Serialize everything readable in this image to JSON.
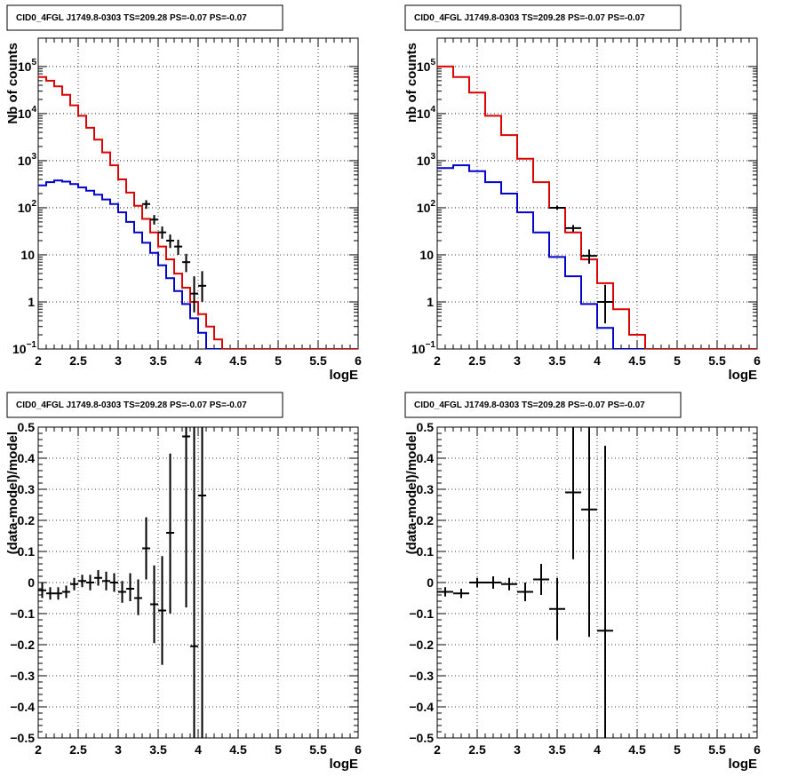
{
  "chart_data": [
    {
      "type": "line",
      "title": "CID0_4FGL J1749.8-0303 TS=209.28 PS=-0.07 PS=-0.07",
      "xlabel": "logE",
      "ylabel": "Nb of counts",
      "xlim": [
        2,
        6
      ],
      "ylim": [
        0.1,
        400000
      ],
      "yscale": "log",
      "grid": true,
      "xticks": [
        "2",
        "2.5",
        "3",
        "3.5",
        "4",
        "4.5",
        "5",
        "5.5",
        "6"
      ],
      "yticks": [
        {
          "value": 0.1,
          "mantissa": "10",
          "exp": "−1"
        },
        {
          "value": 1,
          "mantissa": "1",
          "exp": ""
        },
        {
          "value": 10,
          "mantissa": "10",
          "exp": ""
        },
        {
          "value": 100,
          "mantissa": "10",
          "exp": "2"
        },
        {
          "value": 1000,
          "mantissa": "10",
          "exp": "3"
        },
        {
          "value": 10000,
          "mantissa": "10",
          "exp": "4"
        },
        {
          "value": 100000,
          "mantissa": "10",
          "exp": "5"
        }
      ],
      "bin_edges": [
        2.0,
        2.1,
        2.2,
        2.3,
        2.4,
        2.5,
        2.6,
        2.7,
        2.8,
        2.9,
        3.0,
        3.1,
        3.2,
        3.3,
        3.4,
        3.5,
        3.6,
        3.7,
        3.8,
        3.9,
        4.0,
        4.1,
        4.2,
        4.3,
        4.4,
        4.5,
        4.6,
        4.7,
        4.8,
        4.9,
        5.0,
        5.1,
        5.2,
        5.3,
        5.4,
        5.5,
        5.6,
        5.7,
        5.8,
        5.9,
        6.0
      ],
      "series": [
        {
          "color": "#0000cc",
          "style": "step",
          "values": [
            300,
            350,
            380,
            360,
            320,
            270,
            230,
            190,
            150,
            120,
            80,
            50,
            30,
            18,
            11,
            6,
            3.2,
            1.7,
            0.9,
            0.45,
            0.22,
            0.1,
            0.1,
            0.1,
            0.1,
            0.1,
            0.1,
            0.1,
            0.1,
            0.1,
            0.1,
            0.1,
            0.1,
            0.1,
            0.1,
            0.1,
            0.1,
            0.1,
            0.1,
            0.1
          ]
        },
        {
          "color": "#dd0000",
          "style": "step",
          "values": [
            60000,
            50000,
            38000,
            25000,
            15000,
            9000,
            5000,
            2800,
            1500,
            800,
            400,
            210,
            110,
            58,
            30,
            15,
            8,
            4,
            2,
            1,
            0.55,
            0.3,
            0.16,
            0.1,
            0.1,
            0.1,
            0.1,
            0.1,
            0.1,
            0.1,
            0.1,
            0.1,
            0.1,
            0.1,
            0.1,
            0.1,
            0.1,
            0.1,
            0.1,
            0.1
          ]
        },
        {
          "color": "#000000",
          "style": "points",
          "points": [
            {
              "x": 3.35,
              "y": 120,
              "xerr": 0.05,
              "ylo": 95,
              "yhi": 145
            },
            {
              "x": 3.45,
              "y": 56,
              "xerr": 0.05,
              "ylo": 44,
              "yhi": 70
            },
            {
              "x": 3.55,
              "y": 30,
              "xerr": 0.05,
              "ylo": 22,
              "yhi": 40
            },
            {
              "x": 3.65,
              "y": 20,
              "xerr": 0.05,
              "ylo": 14,
              "yhi": 27
            },
            {
              "x": 3.75,
              "y": 15,
              "xerr": 0.05,
              "ylo": 10,
              "yhi": 21
            },
            {
              "x": 3.85,
              "y": 7,
              "xerr": 0.05,
              "ylo": 4.3,
              "yhi": 10.5
            },
            {
              "x": 3.95,
              "y": 1.5,
              "xerr": 0.05,
              "ylo": 0.6,
              "yhi": 3.5
            },
            {
              "x": 4.05,
              "y": 2.2,
              "xerr": 0.05,
              "ylo": 1.0,
              "yhi": 4.5
            }
          ]
        }
      ]
    },
    {
      "type": "line",
      "title": "CID0_4FGL J1749.8-0303 TS=209.28 PS=-0.07 PS=-0.07",
      "xlabel": "logE",
      "ylabel": "nb of counts",
      "xlim": [
        2,
        6
      ],
      "ylim": [
        0.1,
        400000
      ],
      "yscale": "log",
      "grid": true,
      "xticks": [
        "2",
        "2.5",
        "3",
        "3.5",
        "4",
        "4.5",
        "5",
        "5.5",
        "6"
      ],
      "yticks": [
        {
          "value": 0.1,
          "mantissa": "10",
          "exp": "−1"
        },
        {
          "value": 1,
          "mantissa": "1",
          "exp": ""
        },
        {
          "value": 10,
          "mantissa": "10",
          "exp": ""
        },
        {
          "value": 100,
          "mantissa": "10",
          "exp": "2"
        },
        {
          "value": 1000,
          "mantissa": "10",
          "exp": "3"
        },
        {
          "value": 10000,
          "mantissa": "10",
          "exp": "4"
        },
        {
          "value": 100000,
          "mantissa": "10",
          "exp": "5"
        }
      ],
      "bin_edges": [
        2.0,
        2.2,
        2.4,
        2.6,
        2.8,
        3.0,
        3.2,
        3.4,
        3.6,
        3.8,
        4.0,
        4.2,
        4.4,
        4.6,
        4.8,
        5.0,
        5.2,
        5.4,
        5.6,
        5.8,
        6.0
      ],
      "series": [
        {
          "color": "#0000cc",
          "style": "step",
          "values": [
            700,
            800,
            600,
            350,
            200,
            80,
            30,
            9,
            3.5,
            0.9,
            0.28,
            0.1,
            0.1,
            0.1,
            0.1,
            0.1,
            0.1,
            0.1,
            0.1,
            0.1
          ]
        },
        {
          "color": "#dd0000",
          "style": "step",
          "values": [
            100000,
            60000,
            28000,
            9000,
            3500,
            1100,
            350,
            100,
            30,
            8,
            2.5,
            0.7,
            0.2,
            0.1,
            0.1,
            0.1,
            0.1,
            0.1,
            0.1,
            0.1
          ]
        },
        {
          "color": "#000000",
          "style": "points",
          "points": [
            {
              "x": 3.5,
              "y": 100,
              "xerr": 0.1,
              "ylo": 90,
              "yhi": 110
            },
            {
              "x": 3.7,
              "y": 37,
              "xerr": 0.1,
              "ylo": 31,
              "yhi": 43
            },
            {
              "x": 3.9,
              "y": 9.5,
              "xerr": 0.1,
              "ylo": 6.5,
              "yhi": 13
            },
            {
              "x": 4.1,
              "y": 1.0,
              "xerr": 0.1,
              "ylo": 0.35,
              "yhi": 2.3
            }
          ]
        }
      ]
    },
    {
      "type": "scatter",
      "title": "CID0_4FGL J1749.8-0303 TS=209.28 PS=-0.07 PS=-0.07",
      "xlabel": "logE",
      "ylabel": "(data-model)/model",
      "xlim": [
        2,
        6
      ],
      "ylim": [
        -0.5,
        0.5
      ],
      "yscale": "linear",
      "grid": true,
      "xticks": [
        "2",
        "2.5",
        "3",
        "3.5",
        "4",
        "4.5",
        "5",
        "5.5",
        "6"
      ],
      "yticks": [
        {
          "value": -0.5,
          "label": "−0.5"
        },
        {
          "value": -0.4,
          "label": "−0.4"
        },
        {
          "value": -0.3,
          "label": "−0.3"
        },
        {
          "value": -0.2,
          "label": "−0.2"
        },
        {
          "value": -0.1,
          "label": "−0.1"
        },
        {
          "value": 0,
          "label": "0"
        },
        {
          "value": 0.1,
          "label": "0.1"
        },
        {
          "value": 0.2,
          "label": "0.2"
        },
        {
          "value": 0.3,
          "label": "0.3"
        },
        {
          "value": 0.4,
          "label": "0.4"
        },
        {
          "value": 0.5,
          "label": "0.5"
        }
      ],
      "series": [
        {
          "color": "#000000",
          "style": "points",
          "points": [
            {
              "x": 2.05,
              "y": -0.025,
              "xerr": 0.05,
              "ylo": -0.05,
              "yhi": 0.0
            },
            {
              "x": 2.15,
              "y": -0.035,
              "xerr": 0.05,
              "ylo": -0.055,
              "yhi": -0.015
            },
            {
              "x": 2.25,
              "y": -0.035,
              "xerr": 0.05,
              "ylo": -0.055,
              "yhi": -0.015
            },
            {
              "x": 2.35,
              "y": -0.03,
              "xerr": 0.05,
              "ylo": -0.05,
              "yhi": -0.01
            },
            {
              "x": 2.45,
              "y": -0.005,
              "xerr": 0.05,
              "ylo": -0.025,
              "yhi": 0.015
            },
            {
              "x": 2.55,
              "y": 0.005,
              "xerr": 0.05,
              "ylo": -0.015,
              "yhi": 0.025
            },
            {
              "x": 2.65,
              "y": 0.0,
              "xerr": 0.05,
              "ylo": -0.025,
              "yhi": 0.025
            },
            {
              "x": 2.75,
              "y": 0.015,
              "xerr": 0.05,
              "ylo": -0.01,
              "yhi": 0.04
            },
            {
              "x": 2.85,
              "y": 0.005,
              "xerr": 0.05,
              "ylo": -0.025,
              "yhi": 0.035
            },
            {
              "x": 2.95,
              "y": 0.0,
              "xerr": 0.05,
              "ylo": -0.03,
              "yhi": 0.03
            },
            {
              "x": 3.05,
              "y": -0.03,
              "xerr": 0.05,
              "ylo": -0.065,
              "yhi": 0.005
            },
            {
              "x": 3.15,
              "y": -0.02,
              "xerr": 0.05,
              "ylo": -0.06,
              "yhi": 0.03
            },
            {
              "x": 3.25,
              "y": -0.05,
              "xerr": 0.05,
              "ylo": -0.105,
              "yhi": 0.01
            },
            {
              "x": 3.35,
              "y": 0.11,
              "xerr": 0.05,
              "ylo": 0.01,
              "yhi": 0.21
            },
            {
              "x": 3.45,
              "y": -0.07,
              "xerr": 0.05,
              "ylo": -0.195,
              "yhi": 0.055
            },
            {
              "x": 3.55,
              "y": -0.09,
              "xerr": 0.05,
              "ylo": -0.265,
              "yhi": 0.085
            },
            {
              "x": 3.65,
              "y": 0.16,
              "xerr": 0.05,
              "ylo": -0.1,
              "yhi": 0.415
            },
            {
              "x": 3.85,
              "y": 0.47,
              "xerr": 0.05,
              "ylo": -0.08,
              "yhi": 0.5
            },
            {
              "x": 3.95,
              "y": -0.205,
              "xerr": 0.05,
              "ylo": -0.5,
              "yhi": 0.5
            },
            {
              "x": 4.05,
              "y": 0.28,
              "xerr": 0.05,
              "ylo": -0.5,
              "yhi": 0.5
            }
          ]
        }
      ]
    },
    {
      "type": "scatter",
      "title": "CID0_4FGL J1749.8-0303 TS=209.28 PS=-0.07 PS=-0.07",
      "xlabel": "logE",
      "ylabel": "(data-model)/model",
      "xlim": [
        2,
        6
      ],
      "ylim": [
        -0.5,
        0.5
      ],
      "yscale": "linear",
      "grid": true,
      "xticks": [
        "2",
        "2.5",
        "3",
        "3.5",
        "4",
        "4.5",
        "5",
        "5.5",
        "6"
      ],
      "yticks": [
        {
          "value": -0.5,
          "label": "−0.5"
        },
        {
          "value": -0.4,
          "label": "−0.4"
        },
        {
          "value": -0.3,
          "label": "−0.3"
        },
        {
          "value": -0.2,
          "label": "−0.2"
        },
        {
          "value": -0.1,
          "label": "−0.1"
        },
        {
          "value": 0,
          "label": "0"
        },
        {
          "value": 0.1,
          "label": "0.1"
        },
        {
          "value": 0.2,
          "label": "0.2"
        },
        {
          "value": 0.3,
          "label": "0.3"
        },
        {
          "value": 0.4,
          "label": "0.4"
        },
        {
          "value": 0.5,
          "label": "0.5"
        }
      ],
      "series": [
        {
          "color": "#000000",
          "style": "points",
          "points": [
            {
              "x": 2.1,
              "y": -0.03,
              "xerr": 0.1,
              "ylo": -0.045,
              "yhi": -0.015
            },
            {
              "x": 2.3,
              "y": -0.035,
              "xerr": 0.1,
              "ylo": -0.05,
              "yhi": -0.02
            },
            {
              "x": 2.5,
              "y": 0.0,
              "xerr": 0.1,
              "ylo": -0.015,
              "yhi": 0.015
            },
            {
              "x": 2.7,
              "y": 0.0,
              "xerr": 0.1,
              "ylo": -0.02,
              "yhi": 0.02
            },
            {
              "x": 2.9,
              "y": -0.005,
              "xerr": 0.1,
              "ylo": -0.025,
              "yhi": 0.015
            },
            {
              "x": 3.1,
              "y": -0.03,
              "xerr": 0.1,
              "ylo": -0.06,
              "yhi": 0.0
            },
            {
              "x": 3.3,
              "y": 0.01,
              "xerr": 0.1,
              "ylo": -0.04,
              "yhi": 0.06
            },
            {
              "x": 3.5,
              "y": -0.085,
              "xerr": 0.1,
              "ylo": -0.185,
              "yhi": 0.015
            },
            {
              "x": 3.7,
              "y": 0.29,
              "xerr": 0.1,
              "ylo": 0.075,
              "yhi": 0.5
            },
            {
              "x": 3.9,
              "y": 0.235,
              "xerr": 0.1,
              "ylo": -0.175,
              "yhi": 0.5
            },
            {
              "x": 4.1,
              "y": -0.155,
              "xerr": 0.1,
              "ylo": -0.5,
              "yhi": 0.44
            }
          ]
        }
      ]
    }
  ]
}
